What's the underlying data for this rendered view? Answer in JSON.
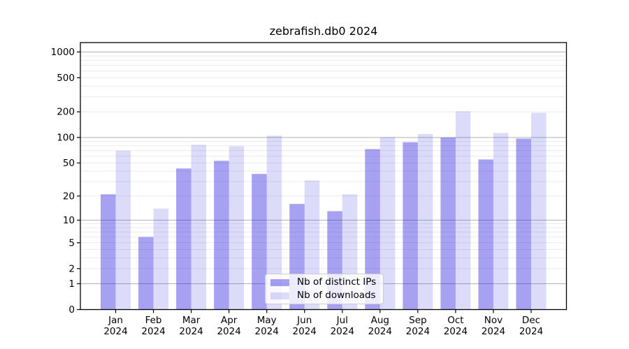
{
  "title": "zebrafish.db0 2024",
  "chart_data": {
    "type": "bar",
    "title": "zebrafish.db0 2024",
    "categories": [
      "Jan",
      "Feb",
      "Mar",
      "Apr",
      "May",
      "Jun",
      "Jul",
      "Aug",
      "Sep",
      "Oct",
      "Nov",
      "Dec"
    ],
    "year_label": "2024",
    "series": [
      {
        "name": "Nb of distinct IPs",
        "base_color": "#2a20dd",
        "alpha": 0.42,
        "values": [
          21,
          6,
          43,
          53,
          37,
          16,
          13,
          73,
          88,
          100,
          55,
          97
        ]
      },
      {
        "name": "Nb of downloads",
        "base_color": "#2a20dd",
        "alpha": 0.16,
        "values": [
          70,
          14,
          82,
          79,
          105,
          31,
          21,
          101,
          110,
          203,
          113,
          195
        ]
      }
    ],
    "y_ticks": [
      0,
      1,
      2,
      5,
      10,
      20,
      50,
      100,
      200,
      500,
      1000
    ],
    "y_scale": "log10(1+y)",
    "ylim": [
      0,
      1290
    ],
    "grid": true,
    "major_gridlines": [
      1,
      10,
      100,
      1000
    ],
    "minor_gridline_bases": [
      1,
      10,
      100
    ],
    "legend_position": "lower center",
    "colors": {
      "axis": "#000000",
      "major_grid": "#b2b2b2",
      "minor_grid": "#ececec",
      "text": "#000000",
      "legend_border": "#cccccc"
    }
  },
  "legend": {
    "items": [
      {
        "label": "Nb of distinct IPs"
      },
      {
        "label": "Nb of downloads"
      }
    ]
  }
}
